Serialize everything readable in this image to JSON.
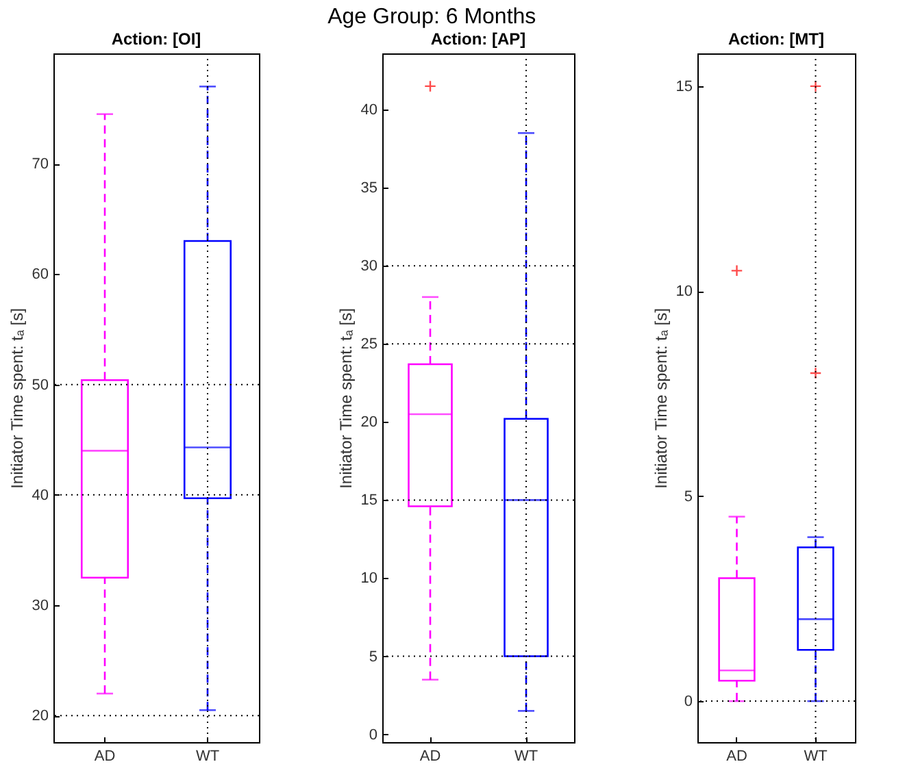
{
  "chart_data": [
    {
      "type": "box",
      "title": "Action: [OI]",
      "ylabel": "Initiator Time spent: tₐ [s]",
      "annotations": [
        "Age Group: 6 Months"
      ],
      "categories": [
        "AD",
        "WT"
      ],
      "colors": [
        "#ff00ff",
        "#0000ff"
      ],
      "line_style": "dashed",
      "boxes": [
        {
          "low": 22,
          "q1": 32.5,
          "median": 44,
          "q3": 50.4,
          "high": 74.5
        },
        {
          "low": 20.5,
          "q1": 39.7,
          "median": 44.3,
          "q3": 63,
          "high": 77
        }
      ],
      "ylim": [
        17.6,
        80
      ],
      "yticks": [
        20,
        30,
        40,
        50,
        60,
        70
      ],
      "ref_lines": [
        {
          "axis": "y",
          "value": 20,
          "color": "#000000",
          "line_style": "dotted"
        },
        {
          "axis": "y",
          "value": 40,
          "color": "#000000",
          "line_style": "dotted"
        },
        {
          "axis": "y",
          "value": 50,
          "color": "#000000",
          "line_style": "dotted"
        },
        {
          "axis": "x",
          "value": "WT",
          "color": "#000000",
          "line_style": "dotted"
        }
      ]
    },
    {
      "type": "box",
      "title": "Action: [AP]",
      "ylabel": "Initiator Time spent: tₐ [s]",
      "categories": [
        "AD",
        "WT"
      ],
      "colors": [
        "#ff00ff",
        "#0000ff"
      ],
      "line_style": "dashed",
      "boxes": [
        {
          "low": 3.5,
          "q1": 14.6,
          "median": 20.5,
          "q3": 23.7,
          "high": 28,
          "outliers": [
            41.5
          ]
        },
        {
          "low": 1.5,
          "q1": 5,
          "median": 15,
          "q3": 20.2,
          "high": 38.5
        }
      ],
      "ylim": [
        -0.5,
        43.6
      ],
      "yticks": [
        0,
        5,
        10,
        15,
        20,
        25,
        30,
        35,
        40
      ],
      "ref_lines": [
        {
          "axis": "y",
          "value": 5,
          "color": "#000000",
          "line_style": "dotted"
        },
        {
          "axis": "y",
          "value": 15,
          "color": "#000000",
          "line_style": "dotted"
        },
        {
          "axis": "y",
          "value": 25,
          "color": "#000000",
          "line_style": "dotted"
        },
        {
          "axis": "y",
          "value": 30,
          "color": "#000000",
          "line_style": "dotted"
        },
        {
          "axis": "x",
          "value": "WT",
          "color": "#000000",
          "line_style": "dotted"
        }
      ]
    },
    {
      "type": "box",
      "title": "Action: [MT]",
      "ylabel": "Initiator Time spent: tₐ [s]",
      "categories": [
        "AD",
        "WT"
      ],
      "colors": [
        "#ff00ff",
        "#0000ff"
      ],
      "line_style": "dashed",
      "boxes": [
        {
          "low": 0,
          "q1": 0.5,
          "median": 0.75,
          "q3": 3,
          "high": 4.5,
          "outliers": [
            10.5
          ]
        },
        {
          "low": 0,
          "q1": 1.25,
          "median": 2,
          "q3": 3.75,
          "high": 4,
          "outliers": [
            8,
            15
          ]
        }
      ],
      "ylim": [
        -1,
        15.8
      ],
      "yticks": [
        0,
        5,
        10,
        15
      ],
      "ref_lines": [
        {
          "axis": "y",
          "value": 0,
          "color": "#000000",
          "line_style": "dotted"
        },
        {
          "axis": "x",
          "value": "WT",
          "color": "#000000",
          "line_style": "dotted"
        }
      ]
    }
  ]
}
